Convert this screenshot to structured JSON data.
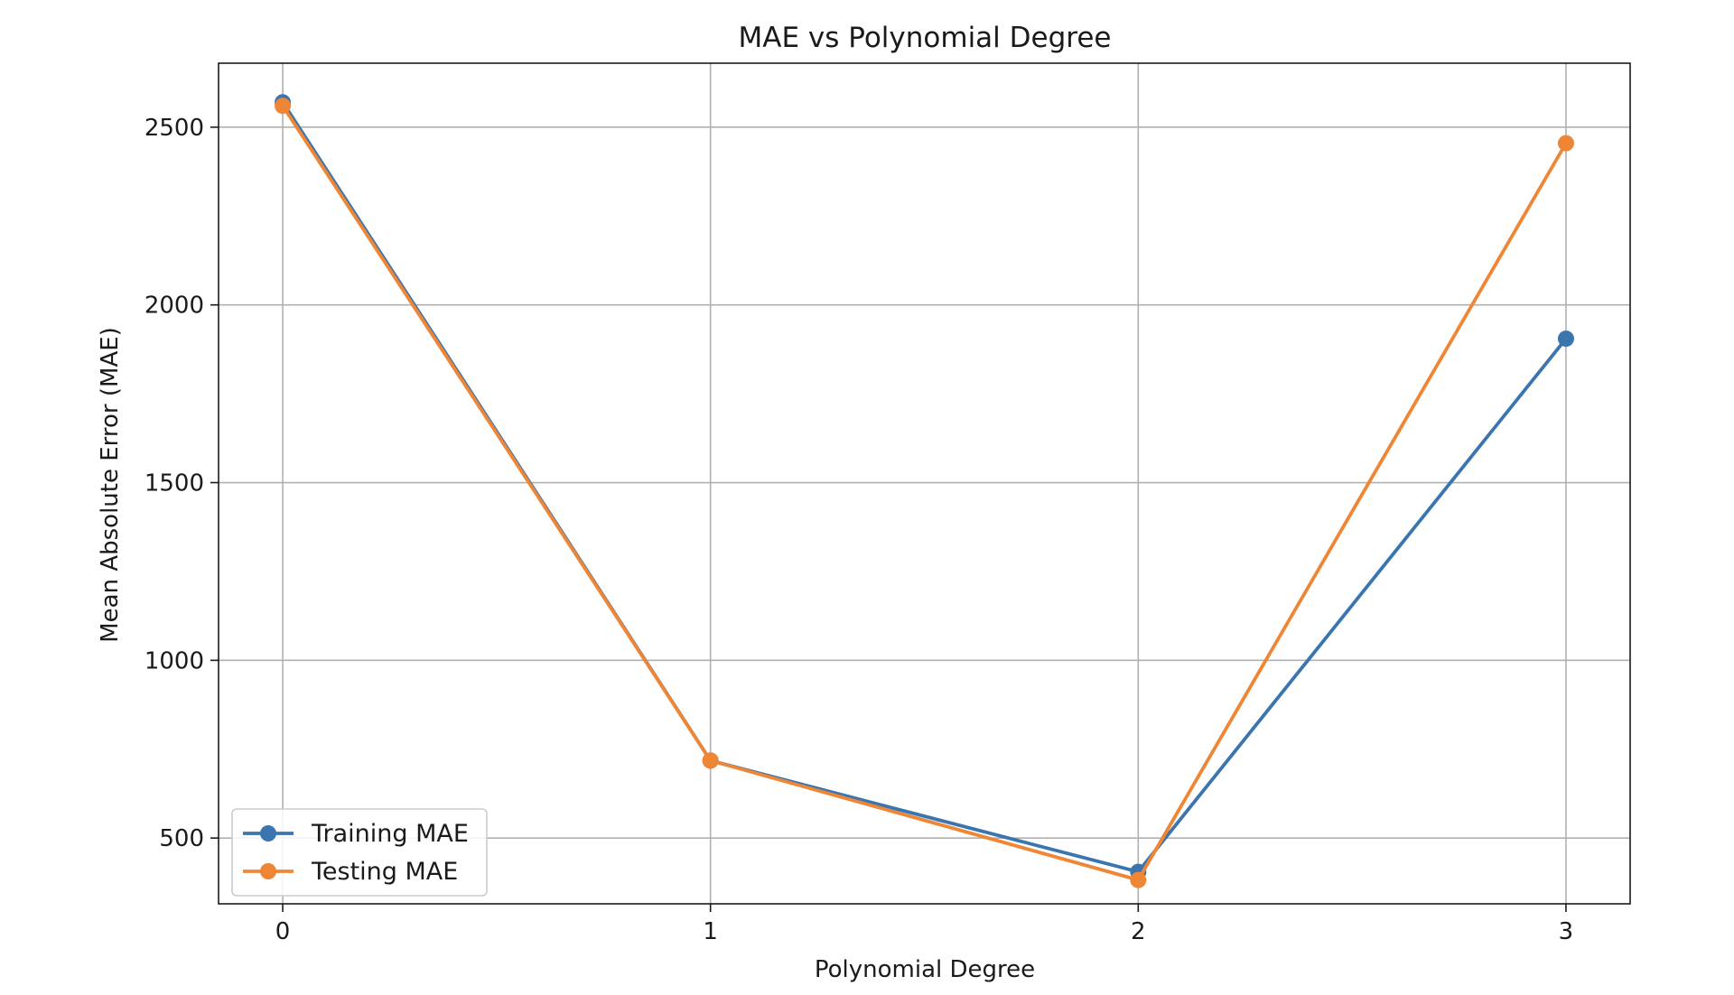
{
  "chart_data": {
    "type": "line",
    "title": "MAE vs Polynomial Degree",
    "xlabel": "Polynomial Degree",
    "ylabel": "Mean Absolute Error (MAE)",
    "x": [
      0,
      1,
      2,
      3
    ],
    "x_ticks": [
      "0",
      "1",
      "2",
      "3"
    ],
    "y_ticks": [
      "500",
      "1000",
      "1500",
      "2000",
      "2500"
    ],
    "xlim": [
      -0.15,
      3.15
    ],
    "ylim": [
      315,
      2680
    ],
    "grid": true,
    "legend_position": "lower-left",
    "series": [
      {
        "name": "Training MAE",
        "color": "#3b75af",
        "marker": "circle",
        "values": [
          2570,
          718,
          405,
          1905
        ]
      },
      {
        "name": "Testing MAE",
        "color": "#ef8636",
        "marker": "circle",
        "values": [
          2560,
          718,
          382,
          2455
        ]
      }
    ]
  }
}
